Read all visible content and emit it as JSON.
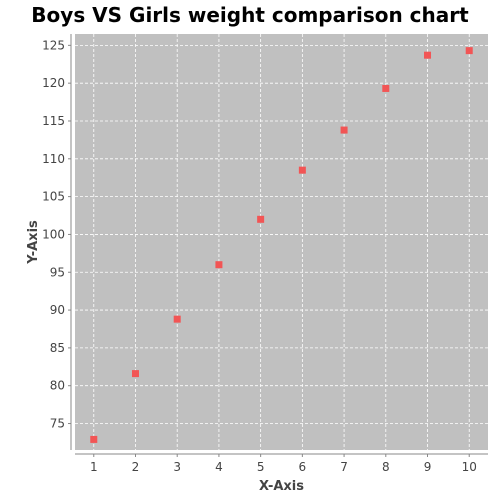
{
  "chart_data": {
    "type": "scatter",
    "title": "Boys VS Girls weight comparison chart",
    "xlabel": "X-Axis",
    "ylabel": "Y-Axis",
    "x": [
      1,
      2,
      3,
      4,
      5,
      6,
      7,
      8,
      9,
      10
    ],
    "series": [
      {
        "values": [
          72.9,
          81.6,
          88.8,
          96.0,
          102.0,
          108.5,
          113.8,
          119.3,
          123.7,
          124.3
        ]
      }
    ],
    "xlim": [
      0.55,
      10.45
    ],
    "ylim": [
      71.5,
      126.5
    ],
    "x_ticks": [
      1,
      2,
      3,
      4,
      5,
      6,
      7,
      8,
      9,
      10
    ],
    "y_ticks": [
      75,
      80,
      85,
      90,
      95,
      100,
      105,
      110,
      115,
      120,
      125
    ],
    "grid": true,
    "legend": "none"
  },
  "colors": {
    "plot_background": "#c0c0c0",
    "gridline": "#ffffff",
    "marker": "#f25555",
    "axis_line": "#888888"
  }
}
